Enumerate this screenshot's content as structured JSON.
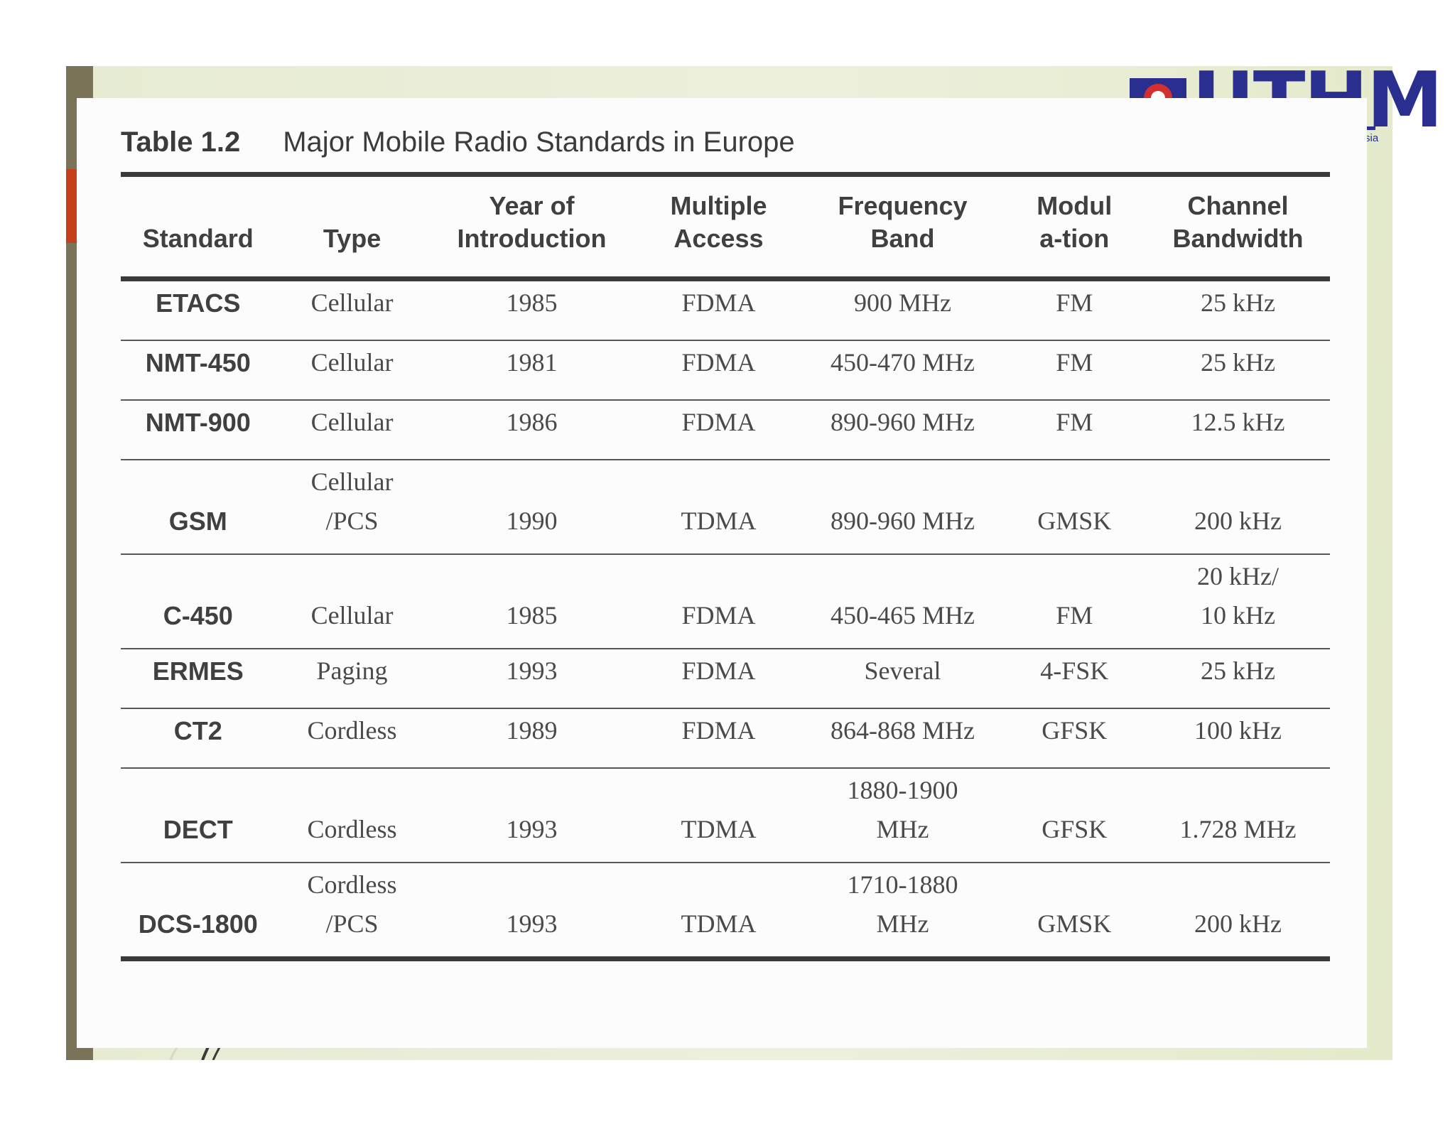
{
  "caption": {
    "number": "Table 1.2",
    "title": "Major Mobile Radio Standards in Europe"
  },
  "logo": {
    "text": "UTHM",
    "subtext": "sia"
  },
  "colors": {
    "accent_bar": "#7b7358",
    "accent_red": "#c4401c",
    "logo_blue": "#2a2f8f"
  },
  "table": {
    "headers": [
      "Standard",
      "Type",
      "Year of Introduction",
      "Multiple Access",
      "Frequency Band",
      "Modula-tion",
      "Channel Bandwidth"
    ],
    "rows": [
      [
        "ETACS",
        "Cellular",
        "1985",
        "FDMA",
        "900 MHz",
        "FM",
        "25 kHz"
      ],
      [
        "NMT-450",
        "Cellular",
        "1981",
        "FDMA",
        "450-470 MHz",
        "FM",
        "25 kHz"
      ],
      [
        "NMT-900",
        "Cellular",
        "1986",
        "FDMA",
        "890-960 MHz",
        "FM",
        "12.5 kHz"
      ],
      [
        "GSM",
        "Cellular /PCS",
        "1990",
        "TDMA",
        "890-960 MHz",
        "GMSK",
        "200 kHz"
      ],
      [
        "C-450",
        "Cellular",
        "1985",
        "FDMA",
        "450-465 MHz",
        "FM",
        "20 kHz/ 10 kHz"
      ],
      [
        "ERMES",
        "Paging",
        "1993",
        "FDMA",
        "Several",
        "4-FSK",
        "25 kHz"
      ],
      [
        "CT2",
        "Cordless",
        "1989",
        "FDMA",
        "864-868 MHz",
        "GFSK",
        "100 kHz"
      ],
      [
        "DECT",
        "Cordless",
        "1993",
        "TDMA",
        "1880-1900 MHz",
        "GFSK",
        "1.728 MHz"
      ],
      [
        "DCS-1800",
        "Cordless /PCS",
        "1993",
        "TDMA",
        "1710-1880 MHz",
        "GMSK",
        "200 kHz"
      ]
    ]
  }
}
